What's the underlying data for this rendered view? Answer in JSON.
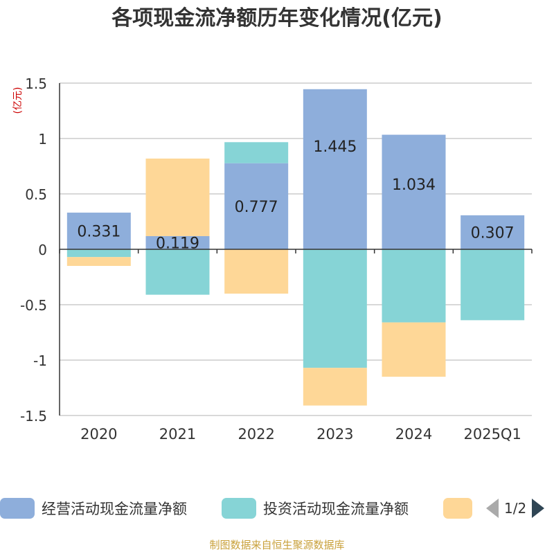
{
  "chart_data": {
    "type": "bar",
    "stacked": true,
    "title": "各项现金流净额历年变化情况(亿元)",
    "ylabel": "(亿元)",
    "ylim": [
      -1.5,
      1.5
    ],
    "yticks": [
      1.5,
      1,
      0.5,
      0,
      -0.5,
      -1,
      -1.5
    ],
    "ytick_labels": [
      "1.5",
      "1",
      "0.5",
      "0",
      "-0.5",
      "-1",
      "-1.5"
    ],
    "categories": [
      "2020",
      "2021",
      "2022",
      "2023",
      "2024",
      "2025Q1"
    ],
    "grid": true,
    "legend_position": "bottom",
    "series": [
      {
        "name": "经营活动现金流量净额",
        "color": "#8eaedb",
        "values": [
          0.331,
          0.119,
          0.777,
          1.445,
          1.034,
          0.307
        ],
        "labels": [
          "0.331",
          "0.119",
          "0.777",
          "1.445",
          "1.034",
          "0.307"
        ]
      },
      {
        "name": "投资活动现金流量净额",
        "color": "#86d4d6",
        "values": [
          -0.07,
          -0.41,
          0.19,
          -1.07,
          -0.66,
          -0.64
        ]
      },
      {
        "name": "",
        "color": "#fed797",
        "values": [
          -0.08,
          0.7,
          -0.4,
          -0.34,
          -0.49,
          0
        ]
      }
    ]
  },
  "legend": {
    "page": "1/2"
  },
  "source": "制图数据来自恒生聚源数据库"
}
